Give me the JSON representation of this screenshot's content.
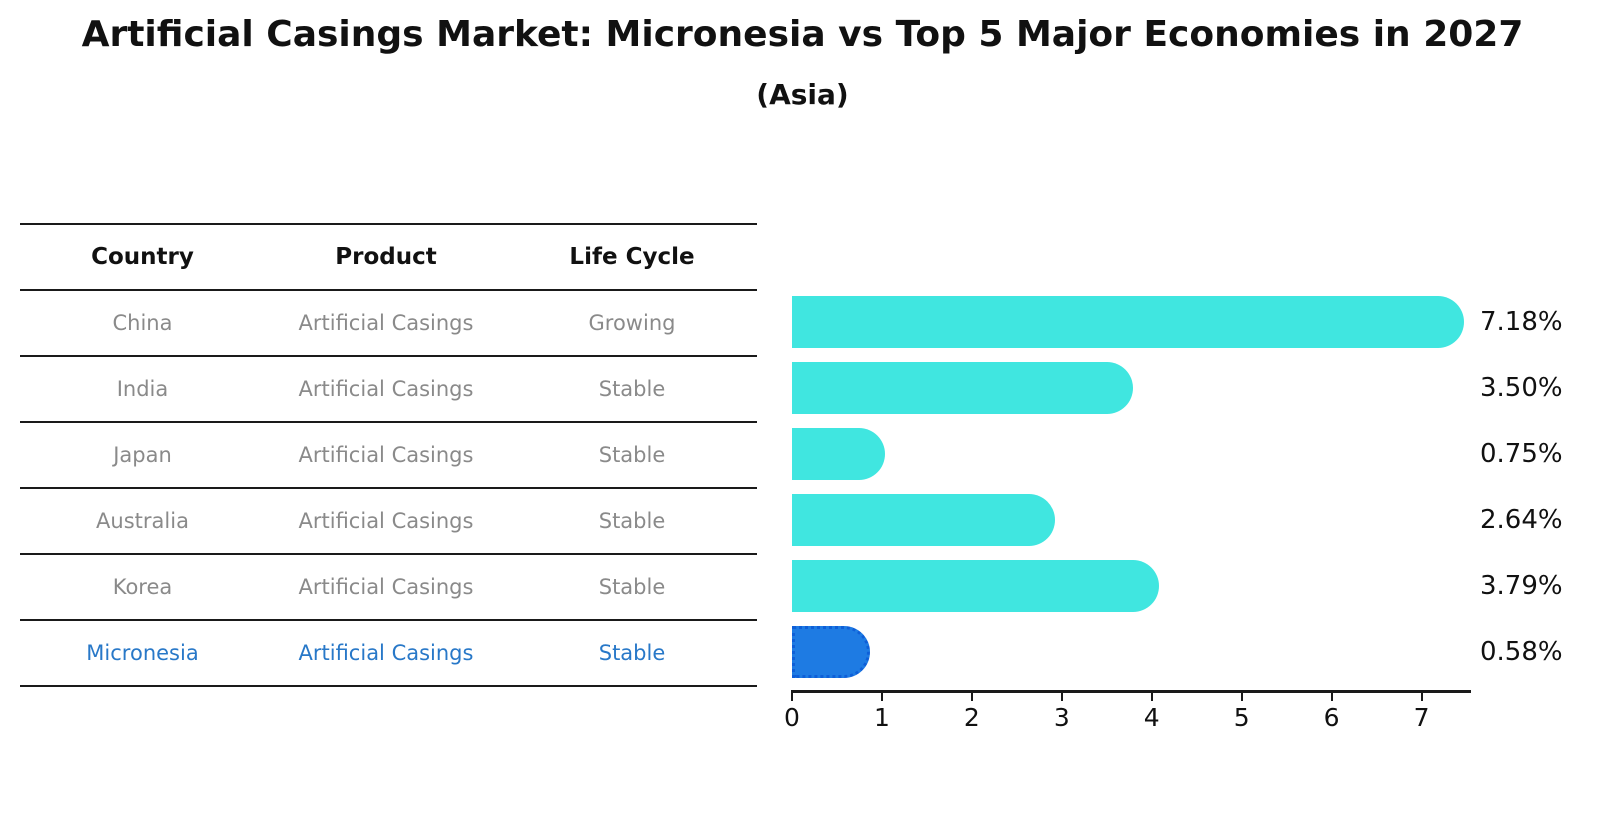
{
  "title": "Artificial Casings Market: Micronesia vs Top 5 Major Economies in 2027",
  "subtitle": "(Asia)",
  "table": {
    "headers": [
      "Country",
      "Product",
      "Life Cycle"
    ],
    "rows": [
      {
        "country": "China",
        "product": "Artificial Casings",
        "life_cycle": "Growing",
        "highlight": false
      },
      {
        "country": "India",
        "product": "Artificial Casings",
        "life_cycle": "Stable",
        "highlight": false
      },
      {
        "country": "Japan",
        "product": "Artificial Casings",
        "life_cycle": "Stable",
        "highlight": false
      },
      {
        "country": "Australia",
        "product": "Artificial Casings",
        "life_cycle": "Stable",
        "highlight": false
      },
      {
        "country": "Korea",
        "product": "Artificial Casings",
        "life_cycle": "Stable",
        "highlight": false
      },
      {
        "country": "Micronesia",
        "product": "Artificial Casings",
        "life_cycle": "Stable",
        "highlight": true
      }
    ]
  },
  "chart_data": {
    "type": "bar",
    "orientation": "horizontal",
    "title": "Artificial Casings Market: Micronesia vs Top 5 Major Economies in 2027 (Asia)",
    "categories": [
      "China",
      "India",
      "Japan",
      "Australia",
      "Korea",
      "Micronesia"
    ],
    "values": [
      7.18,
      3.5,
      0.75,
      2.64,
      3.79,
      0.58
    ],
    "value_labels": [
      "7.18%",
      "3.50%",
      "0.75%",
      "2.64%",
      "3.79%",
      "0.58%"
    ],
    "highlight_index": 5,
    "x_ticks": [
      0,
      1,
      2,
      3,
      4,
      5,
      6,
      7
    ],
    "xlim": [
      0,
      7.55
    ],
    "grid": false,
    "legend": "none",
    "bar_color": "#40E6E0",
    "highlight_bar_color": "#1E7BE3",
    "highlight_text_color": "#2878C8"
  },
  "colors": {
    "text": "#111111",
    "muted_text": "#8A8A8A",
    "line": "#1A1A1A"
  }
}
